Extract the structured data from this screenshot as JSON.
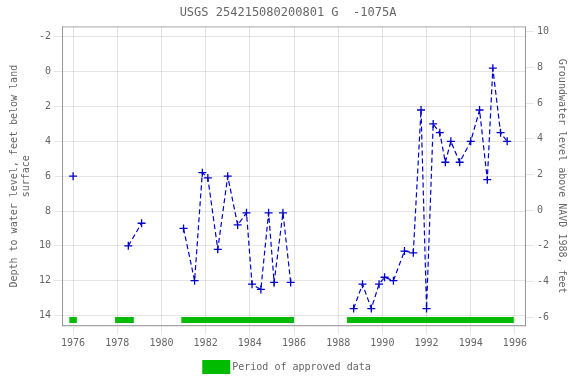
{
  "chart_data": {
    "type": "line",
    "title": "USGS 254215080200801 G  -1075A",
    "ylabel": "Depth to water level, feet below land\nsurface",
    "y2label": "Groundwater level above NAVD 1988, feet",
    "xlim": [
      1975.5,
      1996.5
    ],
    "xticks": [
      1976,
      1978,
      1980,
      1982,
      1984,
      1986,
      1988,
      1990,
      1992,
      1994,
      1996
    ],
    "ylim": [
      14.6,
      -2.6
    ],
    "yticks": [
      -2,
      0,
      2,
      4,
      6,
      8,
      10,
      12,
      14
    ],
    "y2lim": [
      -6.5,
      10.3
    ],
    "y2ticks": [
      10,
      8,
      6,
      4,
      2,
      0,
      -2,
      -4,
      -6
    ],
    "grid": true,
    "legend": "bottom",
    "series": [
      {
        "x": [
          1976.0
        ],
        "values": [
          6.0
        ],
        "color": "#0000cc",
        "line_style": "dashed",
        "marker": "plus"
      },
      {
        "x": [
          1978.5,
          1979.1
        ],
        "values": [
          10.0,
          8.7
        ],
        "color": "#0000cc",
        "line_style": "dashed",
        "marker": "plus"
      },
      {
        "x": [
          1981.0,
          1981.5,
          1981.85,
          1982.1,
          1982.55,
          1983.0,
          1983.45,
          1983.85,
          1984.1,
          1984.5,
          1984.85,
          1985.1,
          1985.5,
          1985.85
        ],
        "values": [
          9.0,
          12.0,
          5.8,
          6.1,
          10.2,
          6.0,
          8.8,
          8.1,
          12.2,
          12.5,
          8.1,
          12.1,
          8.1,
          12.1
        ],
        "color": "#0000cc",
        "line_style": "dashed",
        "marker": "plus"
      },
      {
        "x": [
          1988.7,
          1989.1,
          1989.5,
          1989.85,
          1990.1,
          1990.5,
          1991.0,
          1991.4,
          1991.75,
          1992.0,
          1992.3,
          1992.6,
          1992.85,
          1993.1,
          1993.5,
          1994.0,
          1994.4,
          1994.75,
          1995.0,
          1995.35,
          1995.65
        ],
        "values": [
          13.6,
          12.2,
          13.6,
          12.2,
          11.8,
          12.0,
          10.3,
          10.4,
          2.2,
          13.6,
          3.0,
          3.5,
          5.2,
          4.0,
          5.2,
          4.0,
          2.2,
          6.2,
          -0.2,
          3.5,
          4.0
        ],
        "color": "#0000cc",
        "line_style": "dashed",
        "marker": "plus"
      }
    ],
    "approved_periods": {
      "name": "Period of approved data",
      "color": "#00bb00",
      "y": 14.25,
      "ranges": [
        [
          1975.83,
          1976.17
        ],
        [
          1977.9,
          1978.75
        ],
        [
          1980.9,
          1986.0
        ],
        [
          1988.4,
          1995.95
        ]
      ]
    }
  }
}
